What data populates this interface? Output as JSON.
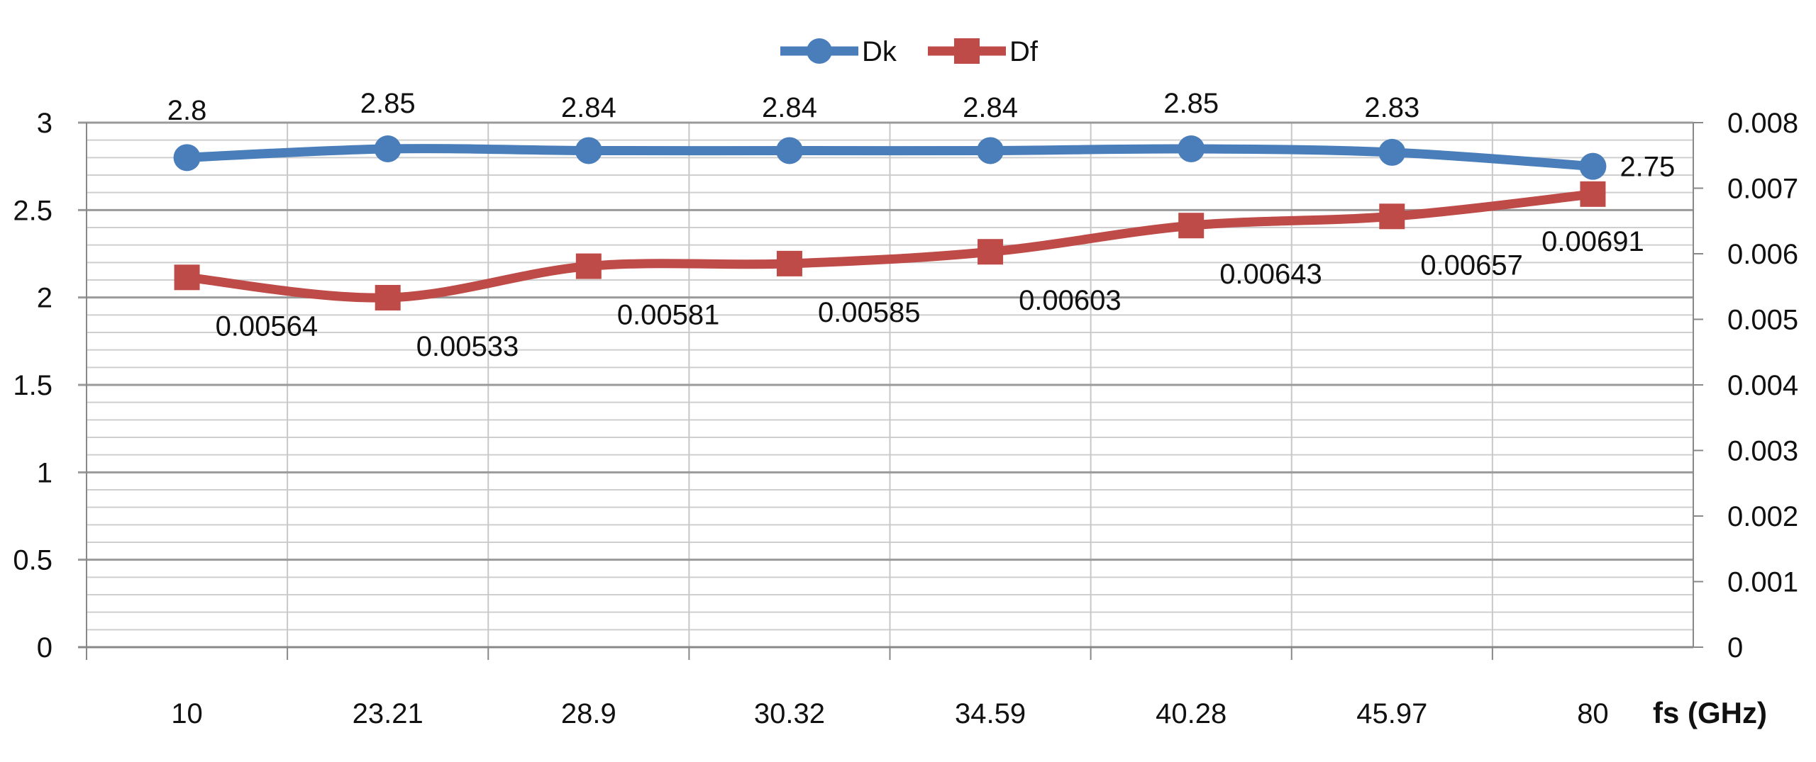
{
  "chart_data": {
    "type": "line",
    "categories": [
      "10",
      "23.21",
      "28.9",
      "30.32",
      "34.59",
      "40.28",
      "45.97",
      "80"
    ],
    "xlabel": "fs (GHz)",
    "series": [
      {
        "name": "Dk",
        "axis": "left",
        "color": "#4a7ebb",
        "marker": "circle",
        "values": [
          2.8,
          2.85,
          2.84,
          2.84,
          2.84,
          2.85,
          2.83,
          2.75
        ],
        "labels": [
          "2.8",
          "2.85",
          "2.84",
          "2.84",
          "2.84",
          "2.85",
          "2.83",
          "2.75"
        ]
      },
      {
        "name": "Df",
        "axis": "right",
        "color": "#be4b48",
        "marker": "square",
        "values": [
          0.00564,
          0.00533,
          0.00581,
          0.00585,
          0.00603,
          0.00643,
          0.00657,
          0.00691
        ],
        "labels": [
          "0.00564",
          "0.00533",
          "0.00581",
          "0.00585",
          "0.00603",
          "0.00643",
          "0.00657",
          "0.00691"
        ]
      }
    ],
    "y_left": {
      "range": [
        0,
        3
      ],
      "ticks": [
        "0",
        "0.5",
        "1",
        "1.5",
        "2",
        "2.5",
        "3"
      ]
    },
    "y_right": {
      "range": [
        0,
        0.008
      ],
      "ticks": [
        "0",
        "0.001",
        "0.002",
        "0.003",
        "0.004",
        "0.005",
        "0.006",
        "0.007",
        "0.008"
      ]
    },
    "grid": true,
    "legend": "top-center"
  }
}
